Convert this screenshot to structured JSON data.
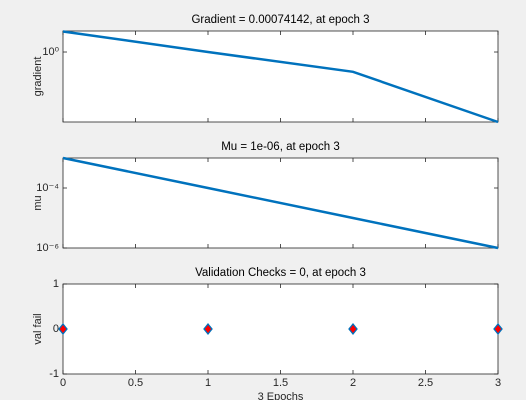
{
  "chart_data": [
    {
      "type": "line",
      "title": "Gradient = 0.00074142, at epoch 3",
      "ylabel": "gradient",
      "x": [
        0,
        1,
        2,
        3
      ],
      "values": [
        8.3,
        1.0,
        0.13,
        0.00074142
      ],
      "color": "#0072bd",
      "log": true,
      "xlim": [
        0,
        3
      ],
      "xticks": [
        0,
        0.5,
        1,
        1.5,
        2,
        2.5,
        3
      ],
      "show_xtick_labels": false,
      "ylim": [
        0.00074142,
        8.7
      ],
      "yticks": [
        {
          "value": 1,
          "label": "10⁰"
        }
      ]
    },
    {
      "type": "line",
      "title": "Mu = 1e-06, at epoch 3",
      "ylabel": "mu",
      "x": [
        0,
        1,
        2,
        3
      ],
      "values": [
        0.001,
        0.0001,
        1e-05,
        1e-06
      ],
      "color": "#0072bd",
      "log": true,
      "xlim": [
        0,
        3
      ],
      "xticks": [
        0,
        0.5,
        1,
        1.5,
        2,
        2.5,
        3
      ],
      "show_xtick_labels": false,
      "ylim": [
        1e-06,
        0.001
      ],
      "yticks": [
        {
          "value": 0.0001,
          "label": "10⁻⁴"
        },
        {
          "value": 1e-06,
          "label": "10⁻⁶"
        }
      ]
    },
    {
      "type": "scatter",
      "title": "Validation Checks = 0, at epoch 3",
      "ylabel": "val fail",
      "xlabel": "3 Epochs",
      "x": [
        0,
        1,
        2,
        3
      ],
      "values": [
        0,
        0,
        0,
        0
      ],
      "color": "#0072bd",
      "marker_fill": "#ff0000",
      "log": false,
      "xlim": [
        0,
        3
      ],
      "xticks": [
        0,
        0.5,
        1,
        1.5,
        2,
        2.5,
        3
      ],
      "show_xtick_labels": true,
      "ylim": [
        -1,
        1
      ],
      "yticks": [
        -1,
        0,
        1
      ]
    }
  ]
}
